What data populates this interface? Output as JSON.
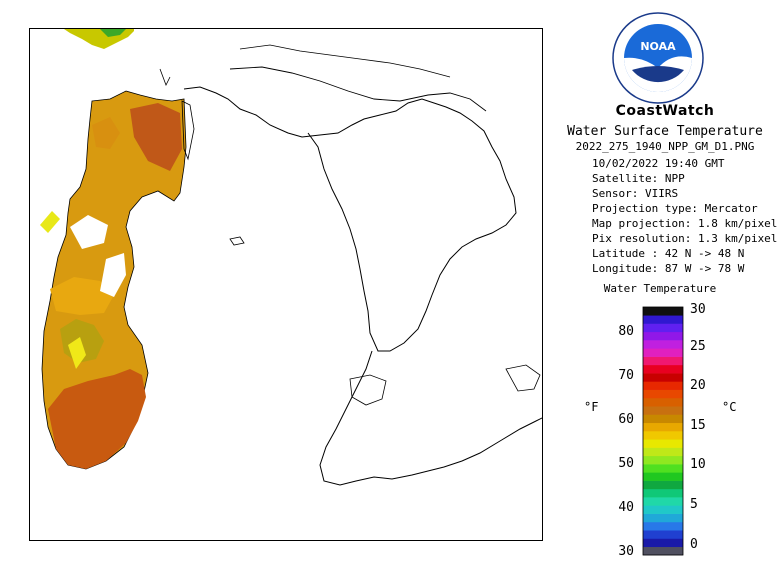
{
  "header": {
    "title": "CoastWatch",
    "subtitle": "Water Surface Temperature",
    "filename": "2022_275_1940_NPP_GM_D1.PNG"
  },
  "logo": {
    "text": "NOAA",
    "icon": "noaa-logo-icon"
  },
  "metadata": {
    "datetime": "10/02/2022   19:40 GMT",
    "satellite": "Satellite: NPP",
    "sensor": "Sensor: VIIRS",
    "projection_type": "Projection type:  Mercator",
    "map_projection": "Map projection: 1.8 km/pixel",
    "pix_resolution": "Pix resolution: 1.3 km/pixel",
    "latitude": "Latitude : 42 N -> 48 N",
    "longitude": "Longitude: 87 W -> 78 W"
  },
  "legend": {
    "title": "Water Temperature",
    "unit_f": "°F",
    "unit_c": "°C",
    "f_ticks": [
      "30",
      "40",
      "50",
      "60",
      "70",
      "80"
    ],
    "c_ticks": [
      "0",
      "5",
      "10",
      "15",
      "20",
      "25",
      "30"
    ],
    "colors": [
      "#505060",
      "#1a1aa8",
      "#2040d0",
      "#2878e8",
      "#20a8d8",
      "#20c8c8",
      "#20d8a8",
      "#10c878",
      "#10a840",
      "#20c820",
      "#50e020",
      "#90e820",
      "#c0e818",
      "#e8e800",
      "#f0c800",
      "#e8a800",
      "#c88800",
      "#c87010",
      "#d86000",
      "#e84800",
      "#e82800",
      "#c80000",
      "#e80020",
      "#f01870",
      "#e020c0",
      "#c020e0",
      "#9018e8",
      "#6020f0",
      "#3018d0",
      "#101010"
    ]
  }
}
